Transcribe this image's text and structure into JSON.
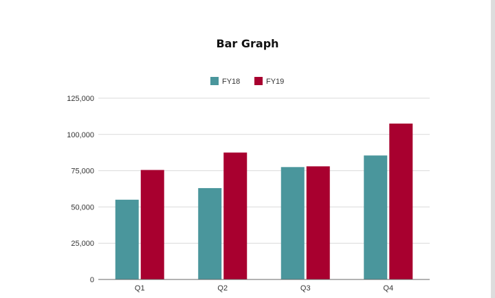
{
  "chart_data": {
    "type": "bar",
    "title": "Bar Graph",
    "xlabel": "",
    "ylabel": "",
    "categories": [
      "Q1",
      "Q2",
      "Q3",
      "Q4"
    ],
    "series": [
      {
        "name": "FY18",
        "values": [
          55000,
          63000,
          77500,
          85500
        ],
        "color": "#4a969c"
      },
      {
        "name": "FY19",
        "values": [
          75500,
          87500,
          78000,
          107500
        ],
        "color": "#a8002f"
      }
    ],
    "ylim": [
      0,
      125000
    ],
    "yticks": [
      0,
      25000,
      50000,
      75000,
      100000,
      125000
    ],
    "ytick_labels": [
      "0",
      "25,000",
      "50,000",
      "75,000",
      "100,000",
      "125,000"
    ],
    "grid": true,
    "legend_position": "top-center"
  }
}
